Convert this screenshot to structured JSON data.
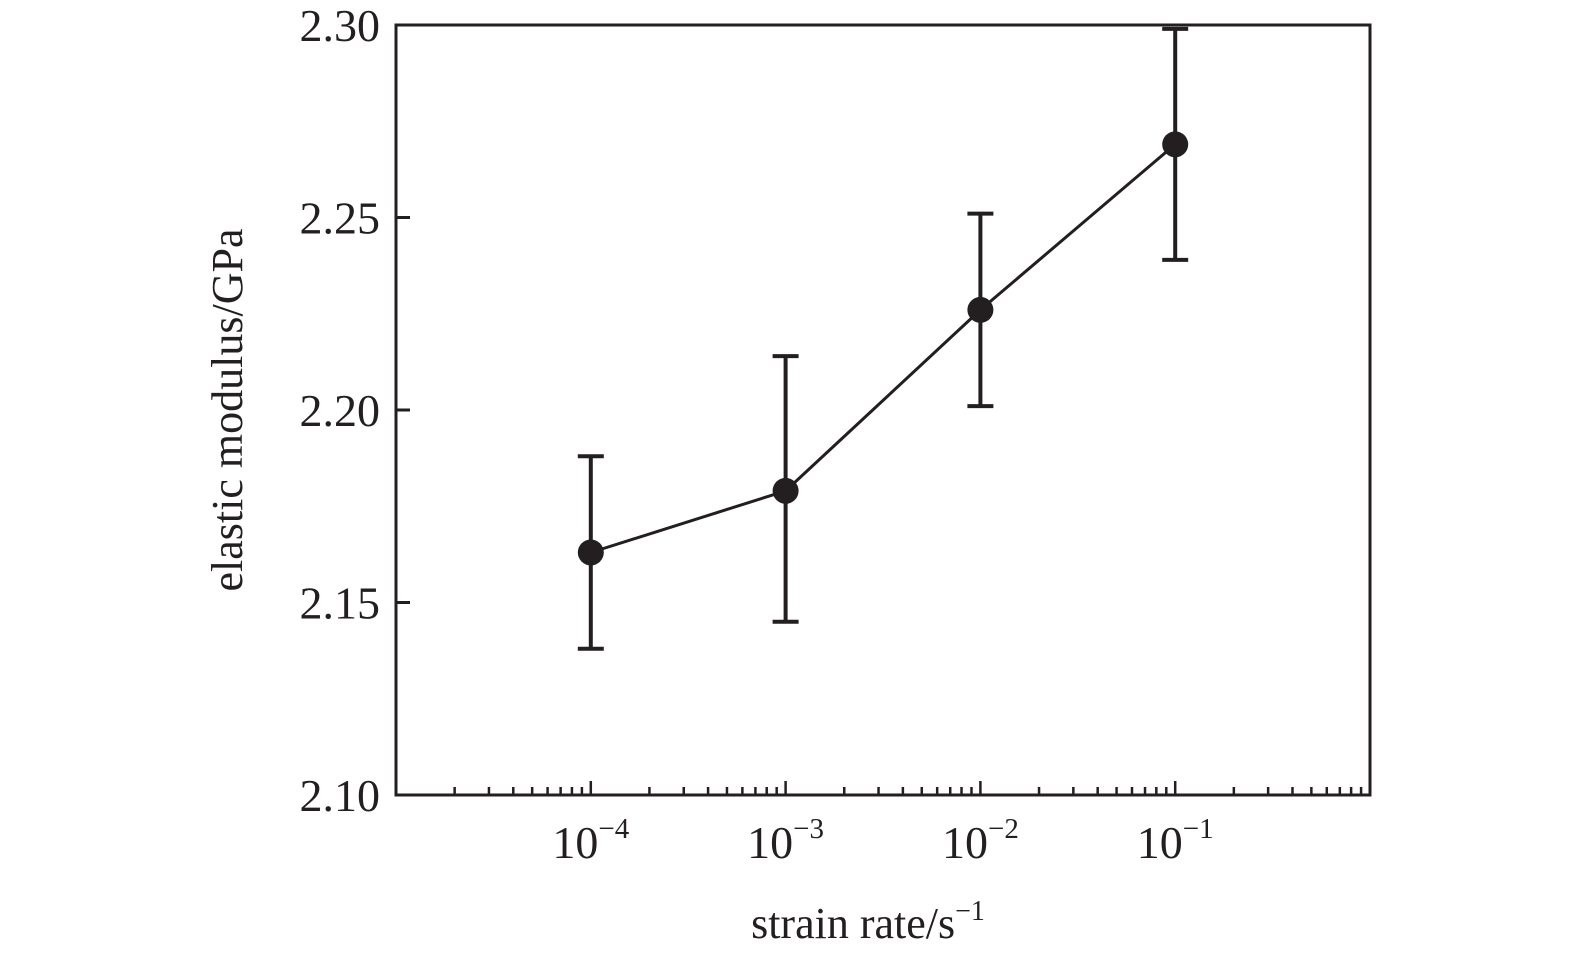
{
  "chart_data": {
    "type": "line",
    "title": "",
    "xlabel": {
      "base": "strain rate/s",
      "exp": "−1"
    },
    "ylabel": "elastic modulus/GPa",
    "x_scale": "log",
    "xlim": [
      1e-05,
      1
    ],
    "ylim": [
      2.1,
      2.3
    ],
    "x_ticks": [
      {
        "value": 0.0001,
        "base": "10",
        "exp": "−4"
      },
      {
        "value": 0.001,
        "base": "10",
        "exp": "−3"
      },
      {
        "value": 0.01,
        "base": "10",
        "exp": "−2"
      },
      {
        "value": 0.1,
        "base": "10",
        "exp": "−1"
      }
    ],
    "y_ticks": [
      {
        "value": 2.1,
        "label": "2.10"
      },
      {
        "value": 2.15,
        "label": "2.15"
      },
      {
        "value": 2.2,
        "label": "2.20"
      },
      {
        "value": 2.25,
        "label": "2.25"
      },
      {
        "value": 2.3,
        "label": "2.30"
      }
    ],
    "grid": false,
    "series": [
      {
        "color": "#231f20",
        "marker": "circle",
        "points": [
          {
            "x": 0.0001,
            "y": 2.163,
            "err_low": 2.138,
            "err_high": 2.188
          },
          {
            "x": 0.001,
            "y": 2.179,
            "err_low": 2.145,
            "err_high": 2.214
          },
          {
            "x": 0.01,
            "y": 2.226,
            "err_low": 2.201,
            "err_high": 2.251
          },
          {
            "x": 0.1,
            "y": 2.269,
            "err_low": 2.239,
            "err_high": 2.299
          }
        ]
      }
    ]
  }
}
